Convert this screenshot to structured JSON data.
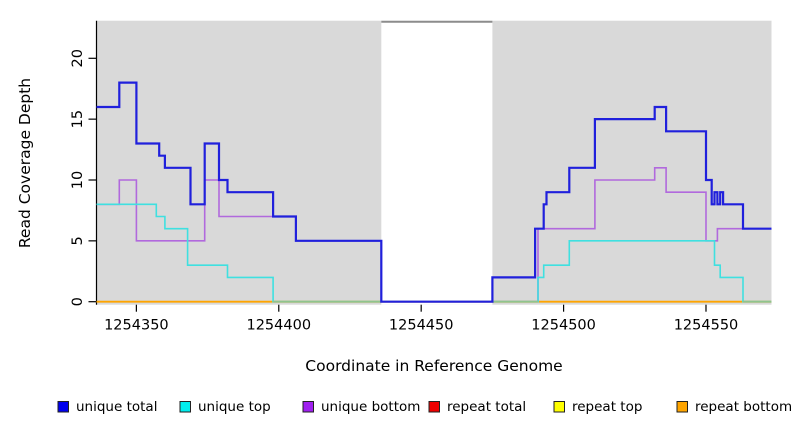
{
  "chart_data": {
    "type": "line",
    "subtype": "step-coverage-plot",
    "title": "",
    "xlabel": "Coordinate in Reference Genome",
    "ylabel": "Read Coverage Depth",
    "xlim": [
      1254336,
      1254573
    ],
    "ylim": [
      0,
      23.1
    ],
    "x_ticks": [
      1254350,
      1254400,
      1254450,
      1254500,
      1254550
    ],
    "y_ticks": [
      0,
      5,
      10,
      15,
      20
    ],
    "plot_bg_color": "#D9D9D9",
    "page_bg_color": "#FFFFFF",
    "masked_region": {
      "from": 1254436,
      "to": 1254475,
      "fill": "#FFFFFF",
      "top_border_color": "#8C8C8C"
    },
    "series": [
      {
        "name": "repeat total",
        "color": "#DD0000",
        "line_width": 1.5,
        "steps": [
          [
            1254336,
            0
          ]
        ]
      },
      {
        "name": "repeat top",
        "color": "#FFFF00",
        "line_width": 1.5,
        "steps": [
          [
            1254336,
            0
          ]
        ]
      },
      {
        "name": "repeat bottom",
        "color": "#FFA500",
        "line_width": 1.8,
        "steps": [
          [
            1254336,
            0
          ]
        ]
      },
      {
        "name": "unique bottom",
        "color": "#B169DD",
        "line_width": 1.6,
        "steps": [
          [
            1254336,
            8
          ],
          [
            1254344,
            10
          ],
          [
            1254350,
            5
          ],
          [
            1254374,
            10
          ],
          [
            1254379,
            7
          ],
          [
            1254406,
            5
          ],
          [
            1254436,
            0
          ],
          [
            1254491,
            6
          ],
          [
            1254511,
            10
          ],
          [
            1254532,
            11
          ],
          [
            1254536,
            9
          ],
          [
            1254550,
            5
          ],
          [
            1254554,
            6
          ]
        ]
      },
      {
        "name": "unique top",
        "color": "#3FE0E0",
        "line_width": 1.6,
        "steps": [
          [
            1254336,
            8
          ],
          [
            1254357,
            7
          ],
          [
            1254360,
            6
          ],
          [
            1254368,
            3
          ],
          [
            1254382,
            2
          ],
          [
            1254398,
            0
          ],
          [
            1254491,
            2
          ],
          [
            1254493,
            3
          ],
          [
            1254502,
            5
          ],
          [
            1254553,
            3
          ],
          [
            1254555,
            2
          ],
          [
            1254563,
            0
          ]
        ]
      },
      {
        "name": "unique total",
        "color": "#2020DC",
        "line_width": 2.2,
        "steps": [
          [
            1254336,
            16
          ],
          [
            1254344,
            18
          ],
          [
            1254350,
            13
          ],
          [
            1254358,
            12
          ],
          [
            1254360,
            11
          ],
          [
            1254369,
            8
          ],
          [
            1254374,
            13
          ],
          [
            1254379,
            10
          ],
          [
            1254382,
            9
          ],
          [
            1254398,
            7
          ],
          [
            1254406,
            5
          ],
          [
            1254436,
            0
          ],
          [
            1254475,
            2
          ],
          [
            1254490,
            6
          ],
          [
            1254493,
            8
          ],
          [
            1254494,
            9
          ],
          [
            1254502,
            11
          ],
          [
            1254511,
            15
          ],
          [
            1254532,
            16
          ],
          [
            1254536,
            14
          ],
          [
            1254550,
            10
          ],
          [
            1254552,
            8
          ],
          [
            1254553,
            9
          ],
          [
            1254554,
            8
          ],
          [
            1254555,
            9
          ],
          [
            1254556,
            8
          ],
          [
            1254563,
            6
          ]
        ]
      }
    ],
    "zero_line_overlap_segments": {
      "comment_color_meaning": "where unique top sits at 0 on top of repeat bottom the line renders muted green",
      "color": "#8FC48F",
      "line_width": 1.8,
      "segments": [
        [
          1254398,
          1254436
        ],
        [
          1254475,
          1254491
        ],
        [
          1254563,
          1254573
        ]
      ]
    },
    "legend": {
      "entries": [
        {
          "label": "unique total",
          "swatch_color": "#0000EE"
        },
        {
          "label": "unique top",
          "swatch_color": "#00EEEE"
        },
        {
          "label": "unique bottom",
          "swatch_color": "#A020F0"
        },
        {
          "label": "repeat total",
          "swatch_color": "#EE0000"
        },
        {
          "label": "repeat top",
          "swatch_color": "#FFFF00"
        },
        {
          "label": "repeat bottom",
          "swatch_color": "#FFA500"
        }
      ]
    }
  }
}
